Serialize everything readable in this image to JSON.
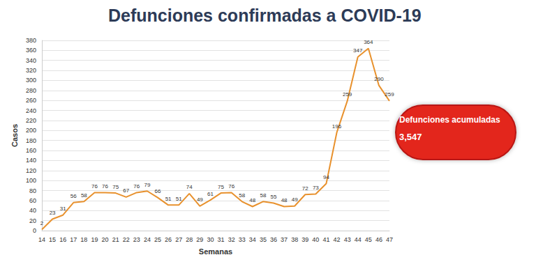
{
  "chart_data": {
    "type": "line",
    "title": "Defunciones confirmadas a COVID-19",
    "x_label": "Semanas",
    "y_label": "Casos",
    "categories": [
      "14",
      "15",
      "16",
      "17",
      "18",
      "19",
      "20",
      "21",
      "22",
      "23",
      "24",
      "25",
      "26",
      "27",
      "28",
      "29",
      "30",
      "31",
      "32",
      "33",
      "34",
      "35",
      "36",
      "37",
      "38",
      "39",
      "40",
      "41",
      "42",
      "43",
      "44",
      "45",
      "46",
      "47"
    ],
    "values": [
      2,
      23,
      31,
      56,
      58,
      76,
      76,
      75,
      67,
      76,
      79,
      66,
      51,
      51,
      74,
      49,
      61,
      75,
      76,
      58,
      48,
      58,
      55,
      48,
      49,
      72,
      73,
      94,
      196,
      259,
      347,
      364,
      290,
      259
    ],
    "color": "#e8912d",
    "ylim": [
      0,
      380
    ],
    "yticks": [
      0,
      20,
      40,
      60,
      80,
      100,
      120,
      140,
      160,
      180,
      200,
      220,
      240,
      260,
      280,
      300,
      320,
      340,
      360,
      380
    ],
    "grid": true,
    "data_labels": true,
    "annotations": [
      "Defunciones acumuladas",
      "3,547"
    ]
  }
}
